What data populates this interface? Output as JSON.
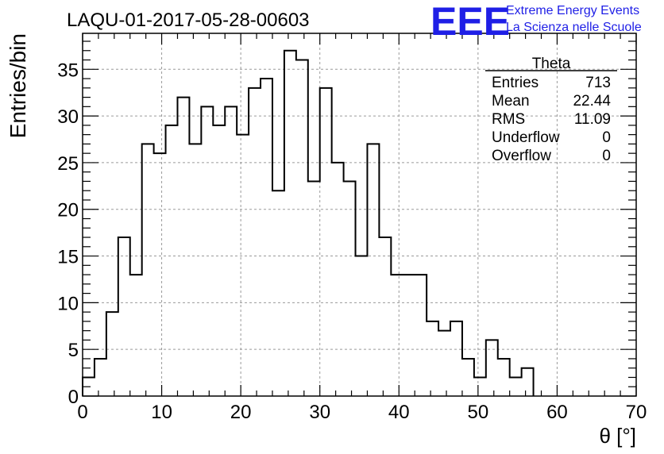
{
  "chart_data": {
    "type": "histogram",
    "title": "LAQU-01-2017-05-28-00603",
    "xlabel": "θ [°]",
    "ylabel": "Entries/bin",
    "xlim": [
      0,
      70
    ],
    "ylim": [
      0,
      38.85
    ],
    "x_ticks": [
      0,
      10,
      20,
      30,
      40,
      50,
      60,
      70
    ],
    "y_ticks": [
      0,
      5,
      10,
      15,
      20,
      25,
      30,
      35
    ],
    "grid": true,
    "bin_edges_start": 0,
    "bin_width": 1.5,
    "counts": [
      2,
      4,
      9,
      17,
      13,
      27,
      26,
      29,
      32,
      27,
      31,
      29,
      31,
      28,
      33,
      34,
      22,
      37,
      36,
      23,
      33,
      25,
      23,
      15,
      27,
      17,
      13,
      13,
      13,
      8,
      7,
      8,
      4,
      2,
      6,
      4,
      2,
      3
    ]
  },
  "stats": {
    "title": "Theta",
    "rows": [
      {
        "label": "Entries",
        "value": "713"
      },
      {
        "label": "Mean",
        "value": "22.44"
      },
      {
        "label": "RMS",
        "value": "11.09"
      },
      {
        "label": "Underflow",
        "value": "0"
      },
      {
        "label": "Overflow",
        "value": "0"
      }
    ]
  },
  "logo": {
    "mark": "EEE",
    "line1": "Extreme Energy Events",
    "line2": "La Scienza nelle Scuole",
    "color": "#1f1fe6"
  }
}
